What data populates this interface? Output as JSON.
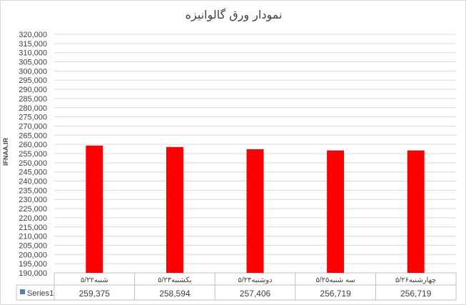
{
  "chart_data": {
    "type": "bar",
    "title": "نمودار ورق گالوانیزه",
    "categories": [
      "شنبه۵/۲۲",
      "یکشنبه۵/۲۳",
      "دوشنبه۵/۲۴",
      "سه شنبه۵/۲۵",
      "چهارشنبه۵/۲۶"
    ],
    "series": [
      {
        "name": "Series1",
        "values": [
          259375,
          258594,
          257406,
          256719,
          256719
        ],
        "color": "#ff0000",
        "legend_color": "#4f81bd"
      }
    ],
    "value_labels": [
      "259,375",
      "258,594",
      "257,406",
      "256,719",
      "256,719"
    ],
    "ylim": [
      190000,
      320000
    ],
    "ytick_step": 5000,
    "grid": true,
    "data_table": true
  },
  "watermark": "IFNAA.IR"
}
